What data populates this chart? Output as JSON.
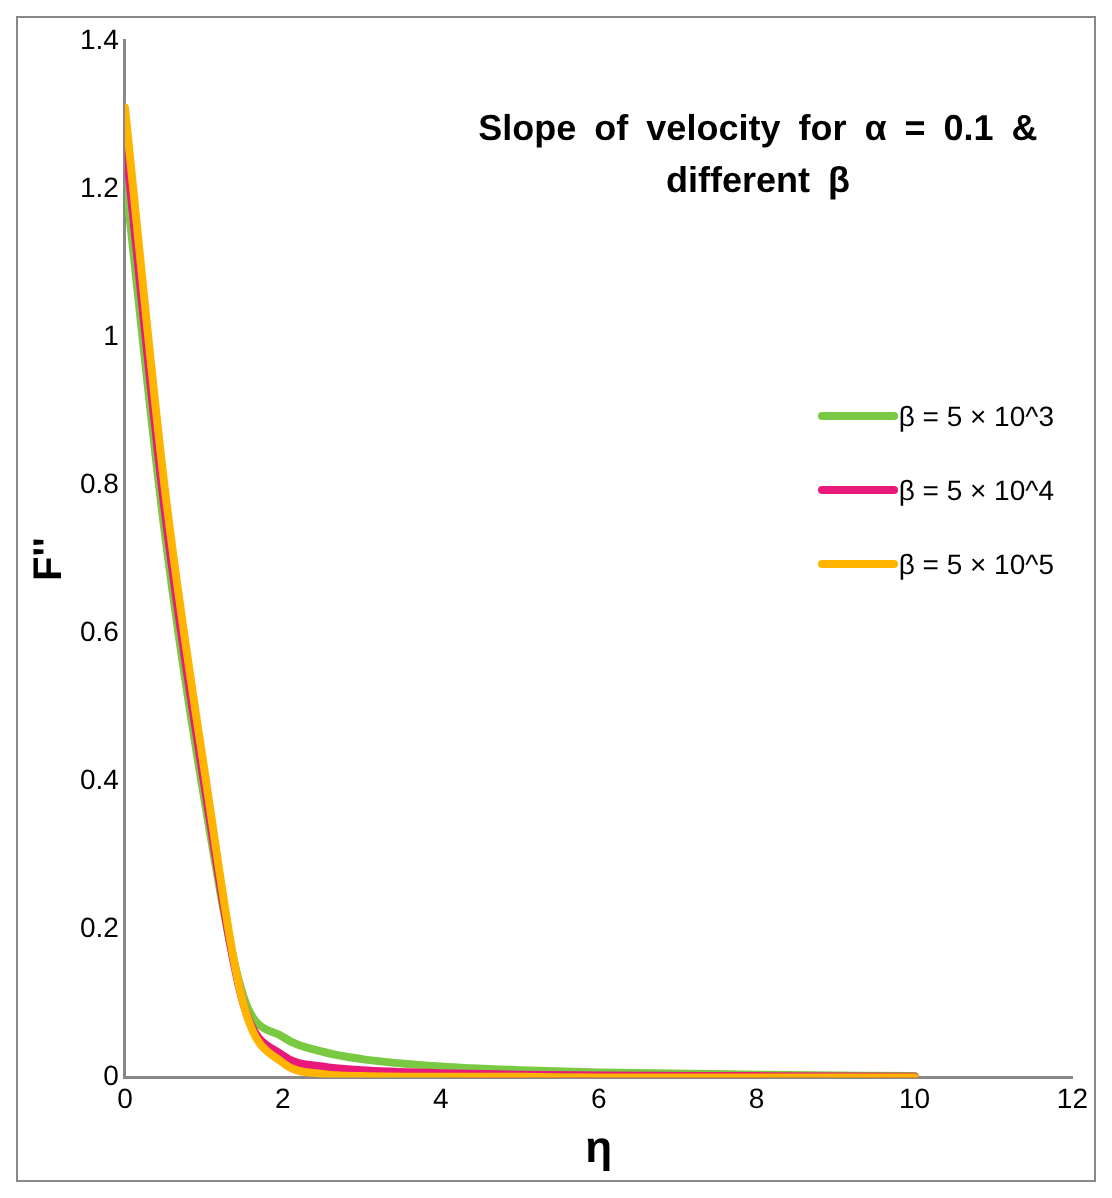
{
  "chart_data": {
    "type": "line",
    "title": "Slope of velocity for α = 0.1 & different β",
    "xlabel": "η",
    "ylabel": "F''",
    "xlim": [
      0,
      12
    ],
    "xticks": [
      0,
      2,
      4,
      6,
      8,
      10,
      12
    ],
    "ylim": [
      0,
      1.4
    ],
    "yticks": [
      0,
      0.2,
      0.4,
      0.6,
      0.8,
      1,
      1.2,
      1.4
    ],
    "grid": false,
    "legend": "right",
    "marker": "none",
    "line_style": "solid",
    "x": [
      0,
      0.5,
      1,
      1.5,
      2,
      2.5,
      3,
      4,
      5,
      6,
      8,
      10
    ],
    "series": [
      {
        "name": "β = 5 × 10^3",
        "color": "#7ac943",
        "values": [
          1.22,
          0.74,
          0.38,
          0.11,
          0.055,
          0.035,
          0.025,
          0.015,
          0.01,
          0.007,
          0.004,
          0.002
        ]
      },
      {
        "name": "β = 5 × 10^4",
        "color": "#e8197a",
        "values": [
          1.27,
          0.77,
          0.4,
          0.1,
          0.03,
          0.015,
          0.01,
          0.006,
          0.004,
          0.003,
          0.002,
          0.001
        ]
      },
      {
        "name": "β = 5 × 10^5",
        "color": "#ffb400",
        "values": [
          1.31,
          0.8,
          0.42,
          0.1,
          0.02,
          0.005,
          0.002,
          0.001,
          0.001,
          0,
          0,
          0
        ]
      }
    ]
  }
}
